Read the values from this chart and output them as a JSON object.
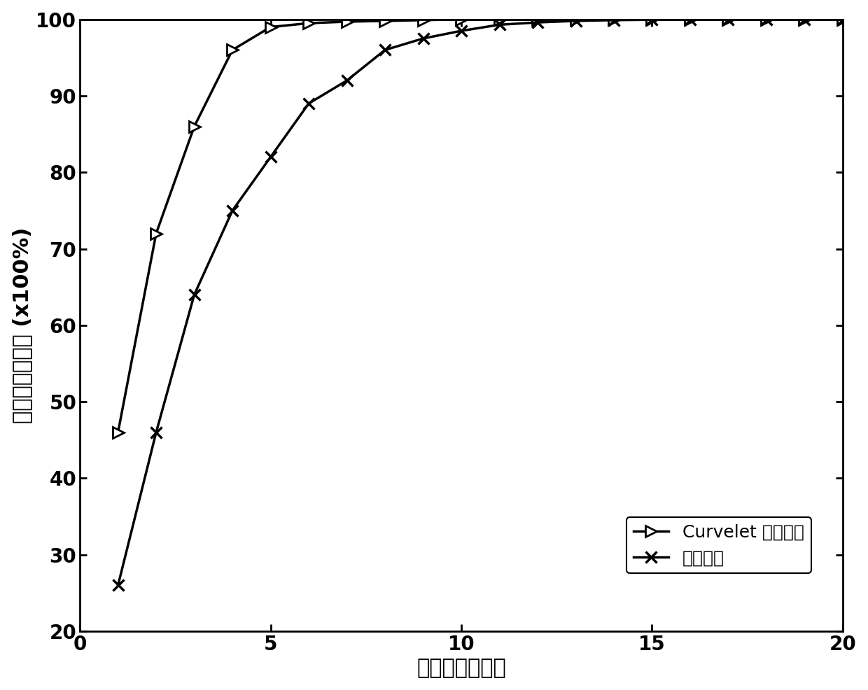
{
  "curvelet_x": [
    1,
    2,
    3,
    4,
    5,
    6,
    7,
    8,
    9,
    10,
    11,
    12,
    13,
    14,
    15,
    16,
    17,
    18,
    19,
    20
  ],
  "curvelet_y": [
    46,
    72,
    86,
    96,
    99,
    99.5,
    99.7,
    99.8,
    99.9,
    100,
    100,
    100,
    100,
    100,
    100,
    100,
    100,
    100,
    100,
    100
  ],
  "original_x": [
    1,
    2,
    3,
    4,
    5,
    6,
    7,
    8,
    9,
    10,
    11,
    12,
    13,
    14,
    15,
    16,
    17,
    18,
    19,
    20
  ],
  "original_y": [
    26,
    46,
    64,
    75,
    82,
    89,
    92,
    96,
    97.5,
    98.5,
    99.3,
    99.6,
    99.8,
    99.9,
    99.95,
    100,
    100,
    100,
    100,
    100
  ],
  "xlabel": "奇异値纤维个数",
  "ylabel": "所占能量百分比 (x100%)",
  "xlim": [
    0,
    20
  ],
  "ylim": [
    20,
    100
  ],
  "xticks": [
    0,
    5,
    10,
    15,
    20
  ],
  "yticks": [
    20,
    30,
    40,
    50,
    60,
    70,
    80,
    90,
    100
  ],
  "legend_curvelet": "Curvelet 域的数据",
  "legend_original": "原始数据",
  "line_color": "#000000",
  "background_color": "#ffffff",
  "fontsize_label": 22,
  "fontsize_tick": 20,
  "fontsize_legend": 18
}
